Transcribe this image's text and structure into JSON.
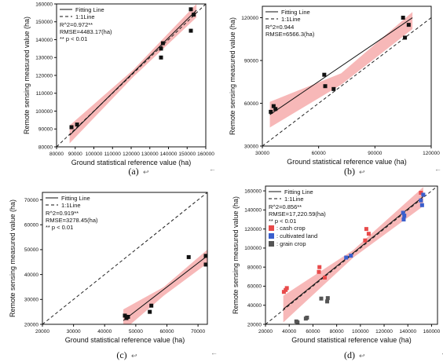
{
  "figure": {
    "caption_mark": "↩",
    "return_mark": "←"
  },
  "chart_data": [
    {
      "type": "scatter",
      "caption": "(a)",
      "xlabel": "Ground statistical reference value (ha)",
      "ylabel": "Remote sensing  measured value (ha)",
      "xlim": [
        80000,
        160000
      ],
      "ylim": [
        80000,
        160000
      ],
      "xticks": [
        "80000",
        "90000",
        "100000",
        "110000",
        "120000",
        "130000",
        "140000",
        "150000",
        "160000"
      ],
      "yticks": [
        "80000",
        "90000",
        "100000",
        "110000",
        "120000",
        "130000",
        "140000",
        "150000",
        "160000"
      ],
      "legend": [
        "Fitting Line",
        "1:1Line"
      ],
      "stats": [
        "R^2=0.972**",
        "RMSE=4483.17(ha)",
        "** p < 0.01"
      ],
      "fit": {
        "x": [
          87000,
          155000
        ],
        "y": [
          86500,
          156500
        ]
      },
      "band": {
        "x": [
          87000,
          121000,
          155000
        ],
        "upper": [
          92000,
          123000,
          160000
        ],
        "lower": [
          82000,
          119000,
          152500
        ]
      },
      "groups": [
        {
          "name": "",
          "color": "#111111",
          "points": [
            [
              88000,
              91000
            ],
            [
              91000,
              92500
            ],
            [
              136000,
              135000
            ],
            [
              136000,
              130000
            ],
            [
              137000,
              138000
            ],
            [
              152000,
              157000
            ],
            [
              152000,
              145000
            ],
            [
              153500,
              154000
            ]
          ]
        }
      ]
    },
    {
      "type": "scatter",
      "caption": "(b)",
      "xlabel": "Ground statistical reference value (ha)",
      "ylabel": "Remote sensing  measured value (ha)",
      "xlim": [
        30000,
        120000
      ],
      "ylim": [
        30000,
        128000
      ],
      "xticks": [
        "30000",
        "60000",
        "90000",
        "120000"
      ],
      "yticks": [
        "30000",
        "60000",
        "90000",
        "120000"
      ],
      "legend": [
        "Fitting Line",
        "1:1Line"
      ],
      "stats": [
        "R^2=0.944",
        "RMSE=6566.3(ha)"
      ],
      "fit": {
        "x": [
          34000,
          110000
        ],
        "y": [
          52000,
          120000
        ]
      },
      "band": {
        "x": [
          34000,
          72000,
          110000
        ],
        "upper": [
          61000,
          81000,
          124000
        ],
        "lower": [
          43000,
          73000,
          112000
        ]
      },
      "groups": [
        {
          "name": "",
          "color": "#111111",
          "points": [
            [
              34500,
              54000
            ],
            [
              36000,
              58000
            ],
            [
              37000,
              56000
            ],
            [
              63000,
              80000
            ],
            [
              63500,
              72000
            ],
            [
              68000,
              70000
            ],
            [
              105000,
              120000
            ],
            [
              106000,
              106000
            ],
            [
              108000,
              115000
            ]
          ]
        }
      ]
    },
    {
      "type": "scatter",
      "caption": "(c)",
      "xlabel": "Ground statistical reference value (ha)",
      "ylabel": "Remote sensing  measured value (ha)",
      "xlim": [
        20000,
        73000
      ],
      "ylim": [
        20000,
        73000
      ],
      "xticks": [
        "20000",
        "30000",
        "40000",
        "50000",
        "60000",
        "70000"
      ],
      "yticks": [
        "20000",
        "30000",
        "40000",
        "50000",
        "60000",
        "70000"
      ],
      "legend": [
        "Fitting Line",
        "1:1Line"
      ],
      "stats": [
        "R^2=0.919**",
        "RMSE=3278.45(ha)",
        "** p < 0.01"
      ],
      "fit": {
        "x": [
          46000,
          73000
        ],
        "y": [
          21500,
          47500
        ]
      },
      "band": {
        "x": [
          46000,
          59000,
          73000
        ],
        "upper": [
          26000,
          35000,
          50000
        ],
        "lower": [
          17500,
          31500,
          44500
        ]
      },
      "groups": [
        {
          "name": "",
          "color": "#111111",
          "points": [
            [
              46500,
              23500
            ],
            [
              47000,
              22500
            ],
            [
              47500,
              23000
            ],
            [
              54500,
              25000
            ],
            [
              55000,
              27500
            ],
            [
              67000,
              47000
            ],
            [
              72500,
              44000
            ],
            [
              72500,
              47500
            ]
          ]
        }
      ]
    },
    {
      "type": "scatter",
      "caption": "(d)",
      "xlabel": "Ground statistical reference value (ha)",
      "ylabel": "Remote sensing  measured value (ha)",
      "xlim": [
        20000,
        165000
      ],
      "ylim": [
        20000,
        165000
      ],
      "xticks": [
        "20000",
        "40000",
        "60000",
        "80000",
        "100000",
        "120000",
        "140000",
        "160000"
      ],
      "yticks": [
        "20000",
        "40000",
        "60000",
        "80000",
        "100000",
        "120000",
        "140000",
        "160000"
      ],
      "legend": [
        "Fitting Line",
        "1:1Line"
      ],
      "stats": [
        "R^2=0.856**",
        "RMSE=17,220.59(ha)",
        "** p < 0.01"
      ],
      "fit": {
        "x": [
          35000,
          153000
        ],
        "y": [
          36000,
          154000
        ]
      },
      "band": {
        "x": [
          35000,
          94000,
          153000
        ],
        "upper": [
          50000,
          98000,
          164000
        ],
        "lower": [
          22000,
          90000,
          144000
        ]
      },
      "groups": [
        {
          "name": "cash crop",
          "color": "#e84a4a",
          "points": [
            [
              35500,
              54000
            ],
            [
              37000,
              56000
            ],
            [
              38000,
              58000
            ],
            [
              65000,
              75000
            ],
            [
              65500,
              80000
            ],
            [
              70000,
              69000
            ],
            [
              104000,
              108000
            ],
            [
              105000,
              120000
            ],
            [
              107000,
              115000
            ],
            [
              151000,
              158000
            ]
          ]
        },
        {
          "name": "cultivated land",
          "color": "#3a5fcd",
          "points": [
            [
              88000,
              90000
            ],
            [
              92000,
              92000
            ],
            [
              136000,
              137000
            ],
            [
              136500,
              130000
            ],
            [
              137000,
              134000
            ],
            [
              151000,
              150000
            ],
            [
              152000,
              145000
            ],
            [
              153000,
              156000
            ]
          ]
        },
        {
          "name": "grain crop",
          "color": "#555555",
          "points": [
            [
              46000,
              23000
            ],
            [
              47000,
              22000
            ],
            [
              54000,
              26000
            ],
            [
              55000,
              27000
            ],
            [
              67000,
              47000
            ],
            [
              72000,
              44000
            ],
            [
              72500,
              47500
            ]
          ]
        }
      ]
    }
  ]
}
